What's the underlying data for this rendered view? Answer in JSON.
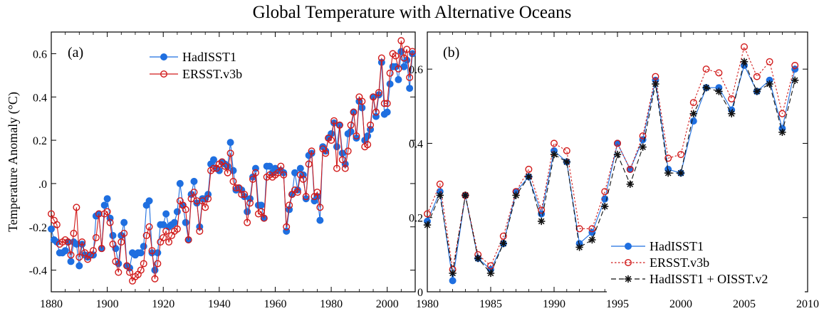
{
  "figure_title": "Global Temperature with Alternative Oceans",
  "chart_data": [
    {
      "type": "line",
      "panel_label": "(a)",
      "ylabel": "Temperature Anomaly (°C)",
      "xlim": [
        1880,
        2010
      ],
      "ylim": [
        -0.5,
        0.7
      ],
      "xticks": [
        1880,
        1900,
        1920,
        1940,
        1960,
        1980,
        2000
      ],
      "xtick_labels": [
        "1880",
        "1900",
        "1920",
        "1940",
        "1960",
        "1980",
        "2000"
      ],
      "yticks": [
        -0.4,
        -0.2,
        0.0,
        0.2,
        0.4,
        0.6
      ],
      "ytick_labels": [
        "-0.4",
        "-0.2",
        ".0",
        "0.2",
        "0.4",
        "0.6"
      ],
      "grid": false,
      "legend_position": "top-center",
      "x": [
        1880,
        1881,
        1882,
        1883,
        1884,
        1885,
        1886,
        1887,
        1888,
        1889,
        1890,
        1891,
        1892,
        1893,
        1894,
        1895,
        1896,
        1897,
        1898,
        1899,
        1900,
        1901,
        1902,
        1903,
        1904,
        1905,
        1906,
        1907,
        1908,
        1909,
        1910,
        1911,
        1912,
        1913,
        1914,
        1915,
        1916,
        1917,
        1918,
        1919,
        1920,
        1921,
        1922,
        1923,
        1924,
        1925,
        1926,
        1927,
        1928,
        1929,
        1930,
        1931,
        1932,
        1933,
        1934,
        1935,
        1936,
        1937,
        1938,
        1939,
        1940,
        1941,
        1942,
        1943,
        1944,
        1945,
        1946,
        1947,
        1948,
        1949,
        1950,
        1951,
        1952,
        1953,
        1954,
        1955,
        1956,
        1957,
        1958,
        1959,
        1960,
        1961,
        1962,
        1963,
        1964,
        1965,
        1966,
        1967,
        1968,
        1969,
        1970,
        1971,
        1972,
        1973,
        1974,
        1975,
        1976,
        1977,
        1978,
        1979,
        1980,
        1981,
        1982,
        1983,
        1984,
        1985,
        1986,
        1987,
        1988,
        1989,
        1990,
        1991,
        1992,
        1993,
        1994,
        1995,
        1996,
        1997,
        1998,
        1999,
        2000,
        2001,
        2002,
        2003,
        2004,
        2005,
        2006,
        2007,
        2008,
        2009
      ],
      "series": [
        {
          "name": "HadISST1",
          "color": "#1f6fe0",
          "marker": "filled-circle",
          "line": "solid",
          "values": [
            -0.21,
            -0.26,
            -0.27,
            -0.32,
            -0.32,
            -0.31,
            -0.27,
            -0.36,
            -0.27,
            -0.28,
            -0.38,
            -0.28,
            -0.33,
            -0.34,
            -0.33,
            -0.33,
            -0.15,
            -0.14,
            -0.3,
            -0.1,
            -0.07,
            -0.16,
            -0.24,
            -0.3,
            -0.37,
            -0.24,
            -0.18,
            -0.38,
            -0.39,
            -0.32,
            -0.33,
            -0.32,
            -0.32,
            -0.29,
            -0.1,
            -0.08,
            -0.32,
            -0.4,
            -0.32,
            -0.19,
            -0.19,
            -0.14,
            -0.2,
            -0.19,
            -0.18,
            -0.13,
            0.0,
            -0.1,
            -0.18,
            -0.26,
            -0.05,
            0.01,
            -0.09,
            -0.2,
            -0.07,
            -0.07,
            -0.05,
            0.09,
            0.11,
            0.07,
            0.06,
            0.1,
            0.09,
            0.08,
            0.19,
            0.06,
            -0.03,
            -0.02,
            -0.03,
            -0.06,
            -0.13,
            -0.07,
            0.03,
            0.07,
            -0.1,
            -0.1,
            -0.16,
            0.08,
            0.08,
            0.05,
            0.07,
            0.06,
            0.06,
            0.05,
            -0.22,
            -0.12,
            -0.05,
            0.05,
            -0.03,
            0.07,
            0.04,
            -0.07,
            0.13,
            0.14,
            -0.08,
            -0.06,
            -0.17,
            0.17,
            0.15,
            0.21,
            0.23,
            0.28,
            0.17,
            0.27,
            0.14,
            0.09,
            0.23,
            0.24,
            0.33,
            0.21,
            0.38,
            0.35,
            0.2,
            0.22,
            0.25,
            0.4,
            0.31,
            0.41,
            0.56,
            0.32,
            0.33,
            0.46,
            0.54,
            0.54,
            0.48,
            0.61,
            0.54,
            0.57,
            0.44,
            0.6
          ]
        },
        {
          "name": "ERSST.v3b",
          "color": "#d11a1a",
          "marker": "open-circle",
          "line": "solid",
          "values": [
            -0.14,
            -0.17,
            -0.19,
            -0.28,
            -0.27,
            -0.26,
            -0.27,
            -0.33,
            -0.23,
            -0.11,
            -0.34,
            -0.27,
            -0.32,
            -0.35,
            -0.33,
            -0.31,
            -0.25,
            -0.14,
            -0.3,
            -0.14,
            -0.13,
            -0.18,
            -0.28,
            -0.36,
            -0.41,
            -0.27,
            -0.23,
            -0.38,
            -0.41,
            -0.45,
            -0.43,
            -0.42,
            -0.4,
            -0.37,
            -0.24,
            -0.2,
            -0.31,
            -0.44,
            -0.37,
            -0.27,
            -0.25,
            -0.22,
            -0.27,
            -0.24,
            -0.22,
            -0.21,
            -0.08,
            -0.1,
            -0.12,
            -0.26,
            -0.07,
            -0.04,
            -0.08,
            -0.22,
            -0.08,
            -0.11,
            -0.07,
            0.06,
            0.07,
            0.07,
            0.09,
            0.1,
            0.08,
            0.05,
            0.14,
            0.01,
            -0.02,
            -0.02,
            -0.05,
            -0.05,
            -0.18,
            -0.09,
            0.02,
            0.05,
            -0.14,
            -0.13,
            -0.16,
            0.03,
            0.04,
            0.03,
            0.04,
            0.05,
            0.08,
            0.04,
            -0.2,
            -0.1,
            -0.05,
            -0.03,
            -0.04,
            0.04,
            0.02,
            -0.06,
            0.09,
            0.15,
            -0.06,
            -0.04,
            -0.11,
            0.16,
            0.14,
            0.21,
            0.2,
            0.29,
            0.07,
            0.27,
            0.11,
            0.07,
            0.15,
            0.27,
            0.33,
            0.22,
            0.4,
            0.38,
            0.17,
            0.18,
            0.27,
            0.4,
            0.33,
            0.42,
            0.58,
            0.37,
            0.37,
            0.51,
            0.6,
            0.59,
            0.53,
            0.66,
            0.58,
            0.62,
            0.49,
            0.61
          ]
        }
      ]
    },
    {
      "type": "line",
      "panel_label": "(b)",
      "xlim": [
        1980,
        2010
      ],
      "ylim": [
        0,
        0.7
      ],
      "xticks": [
        1980,
        1985,
        1990,
        1995,
        2000,
        2005,
        2010
      ],
      "xtick_labels": [
        "1980",
        "1985",
        "1990",
        "1995",
        "2000",
        "2005",
        "2010"
      ],
      "yticks": [
        0,
        0.2,
        0.4,
        0.6
      ],
      "ytick_labels": [
        "0",
        "0.2",
        "0.4",
        "0.6"
      ],
      "grid": false,
      "legend_position": "bottom-right",
      "x": [
        1980,
        1981,
        1982,
        1983,
        1984,
        1985,
        1986,
        1987,
        1988,
        1989,
        1990,
        1991,
        1992,
        1993,
        1994,
        1995,
        1996,
        1997,
        1998,
        1999,
        2000,
        2001,
        2002,
        2003,
        2004,
        2005,
        2006,
        2007,
        2008,
        2009
      ],
      "series": [
        {
          "name": "HadISST1",
          "color": "#1f6fe0",
          "marker": "filled-circle",
          "line": "solid",
          "values": [
            0.19,
            0.27,
            0.03,
            0.26,
            0.09,
            0.06,
            0.13,
            0.27,
            0.31,
            0.21,
            0.38,
            0.35,
            0.13,
            0.16,
            0.25,
            0.4,
            0.33,
            0.41,
            0.57,
            0.33,
            0.32,
            0.46,
            0.55,
            0.55,
            0.49,
            0.61,
            0.54,
            0.57,
            0.44,
            0.6
          ]
        },
        {
          "name": "ERSST.v3b",
          "color": "#d11a1a",
          "marker": "open-circle",
          "line": "dotted",
          "values": [
            0.21,
            0.29,
            0.06,
            0.26,
            0.1,
            0.07,
            0.15,
            0.27,
            0.33,
            0.22,
            0.4,
            0.38,
            0.17,
            0.17,
            0.27,
            0.4,
            0.33,
            0.42,
            0.58,
            0.36,
            0.37,
            0.51,
            0.6,
            0.59,
            0.52,
            0.66,
            0.58,
            0.62,
            0.48,
            0.61
          ]
        },
        {
          "name": "HadISST1 + OISST.v2",
          "color": "#111111",
          "marker": "asterisk",
          "line": "dashed",
          "values": [
            0.18,
            0.26,
            0.05,
            0.26,
            0.09,
            0.05,
            0.13,
            0.26,
            0.31,
            0.19,
            0.37,
            0.35,
            0.12,
            0.14,
            0.23,
            0.37,
            0.29,
            0.39,
            0.56,
            0.32,
            0.32,
            0.48,
            0.55,
            0.54,
            0.48,
            0.62,
            0.54,
            0.56,
            0.43,
            0.57
          ]
        }
      ]
    }
  ]
}
